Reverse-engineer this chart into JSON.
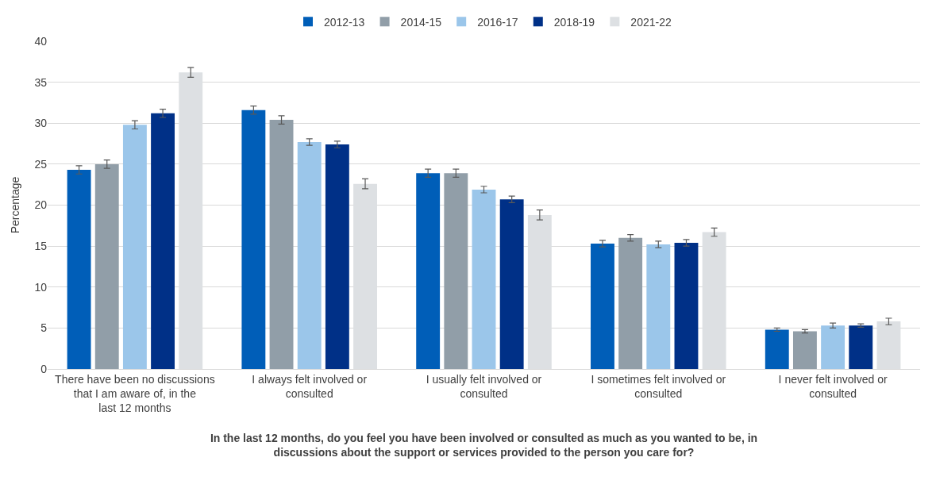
{
  "chart_data": {
    "type": "bar",
    "xlabel": "In the last 12 months, do you feel you have been involved or consulted as much as you wanted to be, in discussions about the support or services provided to the person you care for?",
    "ylabel": "Percentage",
    "categories": [
      "There have been no discussions that I am aware of, in the last 12 months",
      "I always felt involved or consulted",
      "I usually felt involved or consulted",
      "I sometimes felt involved or consulted",
      "I never felt involved or consulted"
    ],
    "series": [
      {
        "name": "2012-13",
        "color": "#005eb8",
        "values": [
          24.3,
          31.6,
          23.9,
          15.3,
          4.8
        ],
        "errors": [
          0.5,
          0.5,
          0.5,
          0.4,
          0.2
        ]
      },
      {
        "name": "2014-15",
        "color": "#919ea8",
        "values": [
          25.0,
          30.4,
          23.9,
          16.0,
          4.6
        ],
        "errors": [
          0.5,
          0.5,
          0.5,
          0.4,
          0.2
        ]
      },
      {
        "name": "2016-17",
        "color": "#9bc6ea",
        "values": [
          29.8,
          27.7,
          21.9,
          15.2,
          5.3
        ],
        "errors": [
          0.5,
          0.4,
          0.4,
          0.4,
          0.3
        ]
      },
      {
        "name": "2018-19",
        "color": "#003087",
        "values": [
          31.2,
          27.4,
          20.7,
          15.4,
          5.3
        ],
        "errors": [
          0.5,
          0.4,
          0.4,
          0.4,
          0.2
        ]
      },
      {
        "name": "2021-22",
        "color": "#dde0e3",
        "values": [
          36.2,
          22.6,
          18.8,
          16.7,
          5.8
        ],
        "errors": [
          0.6,
          0.6,
          0.6,
          0.5,
          0.4
        ]
      }
    ],
    "ylim": [
      0,
      40
    ],
    "yticks": [
      0,
      5,
      10,
      15,
      20,
      25,
      30,
      35,
      40
    ],
    "grid": "y",
    "legend": "top"
  }
}
